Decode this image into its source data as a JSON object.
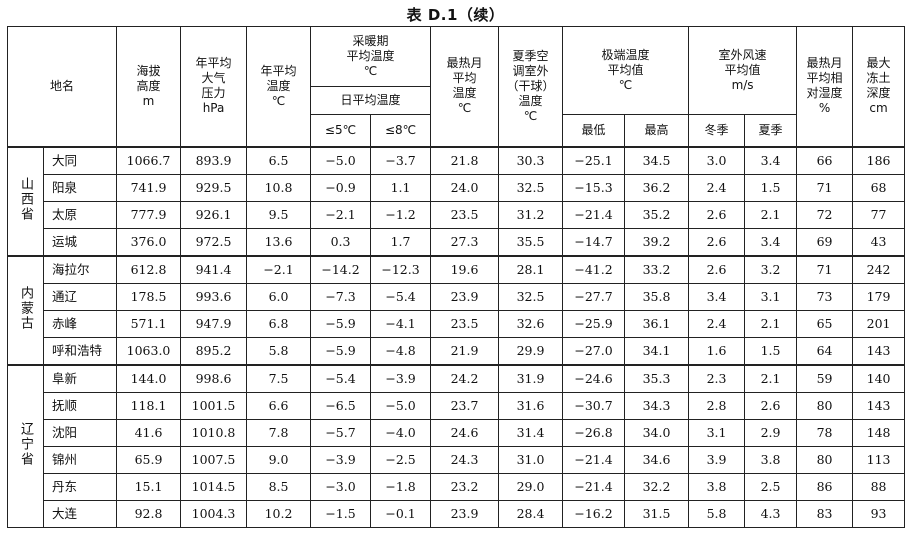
{
  "title": "表 D.1（续）",
  "header": {
    "place": "地名",
    "altitude": [
      "海拔",
      "高度",
      "m"
    ],
    "pressure": [
      "年平均",
      "大气",
      "压力",
      "hPa"
    ],
    "mean_temp": [
      "年平均",
      "温度",
      "℃"
    ],
    "heating_group": [
      "采暖期",
      "平均温度",
      "℃"
    ],
    "daily_mean": "日平均温度",
    "le5": "≤5℃",
    "le8": "≤8℃",
    "hottest_month": [
      "最热月",
      "平均",
      "温度",
      "℃"
    ],
    "summer_ac": [
      "夏季空",
      "调室外",
      "（干球）",
      "温度",
      "℃"
    ],
    "extreme_group": [
      "极端温度",
      "平均值",
      "℃"
    ],
    "min": "最低",
    "max": "最高",
    "wind_group": [
      "室外风速",
      "平均值",
      "m/s"
    ],
    "winter": "冬季",
    "summer": "夏季",
    "humidity": [
      "最热月",
      "平均相",
      "对湿度",
      "%"
    ],
    "frost": [
      "最大",
      "冻土",
      "深度",
      "cm"
    ]
  },
  "provinces": [
    {
      "name": "山西省",
      "rows": [
        {
          "city": "大同",
          "alt": "1066.7",
          "pres": "893.9",
          "temp": "6.5",
          "h5": "−5.0",
          "h8": "−3.7",
          "hot": "21.8",
          "ac": "30.3",
          "emin": "−25.1",
          "emax": "34.5",
          "ww": "3.0",
          "sw": "3.4",
          "rh": "66",
          "frost": "186"
        },
        {
          "city": "阳泉",
          "alt": "741.9",
          "pres": "929.5",
          "temp": "10.8",
          "h5": "−0.9",
          "h8": "1.1",
          "hot": "24.0",
          "ac": "32.5",
          "emin": "−15.3",
          "emax": "36.2",
          "ww": "2.4",
          "sw": "1.5",
          "rh": "71",
          "frost": "68"
        },
        {
          "city": "太原",
          "alt": "777.9",
          "pres": "926.1",
          "temp": "9.5",
          "h5": "−2.1",
          "h8": "−1.2",
          "hot": "23.5",
          "ac": "31.2",
          "emin": "−21.4",
          "emax": "35.2",
          "ww": "2.6",
          "sw": "2.1",
          "rh": "72",
          "frost": "77"
        },
        {
          "city": "运城",
          "alt": "376.0",
          "pres": "972.5",
          "temp": "13.6",
          "h5": "0.3",
          "h8": "1.7",
          "hot": "27.3",
          "ac": "35.5",
          "emin": "−14.7",
          "emax": "39.2",
          "ww": "2.6",
          "sw": "3.4",
          "rh": "69",
          "frost": "43"
        }
      ]
    },
    {
      "name": "内蒙古",
      "rows": [
        {
          "city": "海拉尔",
          "alt": "612.8",
          "pres": "941.4",
          "temp": "−2.1",
          "h5": "−14.2",
          "h8": "−12.3",
          "hot": "19.6",
          "ac": "28.1",
          "emin": "−41.2",
          "emax": "33.2",
          "ww": "2.6",
          "sw": "3.2",
          "rh": "71",
          "frost": "242"
        },
        {
          "city": "通辽",
          "alt": "178.5",
          "pres": "993.6",
          "temp": "6.0",
          "h5": "−7.3",
          "h8": "−5.4",
          "hot": "23.9",
          "ac": "32.5",
          "emin": "−27.7",
          "emax": "35.8",
          "ww": "3.4",
          "sw": "3.1",
          "rh": "73",
          "frost": "179"
        },
        {
          "city": "赤峰",
          "alt": "571.1",
          "pres": "947.9",
          "temp": "6.8",
          "h5": "−5.9",
          "h8": "−4.1",
          "hot": "23.5",
          "ac": "32.6",
          "emin": "−25.9",
          "emax": "36.1",
          "ww": "2.4",
          "sw": "2.1",
          "rh": "65",
          "frost": "201"
        },
        {
          "city": "呼和浩特",
          "alt": "1063.0",
          "pres": "895.2",
          "temp": "5.8",
          "h5": "−5.9",
          "h8": "−4.8",
          "hot": "21.9",
          "ac": "29.9",
          "emin": "−27.0",
          "emax": "34.1",
          "ww": "1.6",
          "sw": "1.5",
          "rh": "64",
          "frost": "143"
        }
      ]
    },
    {
      "name": "辽宁省",
      "rows": [
        {
          "city": "阜新",
          "alt": "144.0",
          "pres": "998.6",
          "temp": "7.5",
          "h5": "−5.4",
          "h8": "−3.9",
          "hot": "24.2",
          "ac": "31.9",
          "emin": "−24.6",
          "emax": "35.3",
          "ww": "2.3",
          "sw": "2.1",
          "rh": "59",
          "frost": "140"
        },
        {
          "city": "抚顺",
          "alt": "118.1",
          "pres": "1001.5",
          "temp": "6.6",
          "h5": "−6.5",
          "h8": "−5.0",
          "hot": "23.7",
          "ac": "31.6",
          "emin": "−30.7",
          "emax": "34.3",
          "ww": "2.8",
          "sw": "2.6",
          "rh": "80",
          "frost": "143"
        },
        {
          "city": "沈阳",
          "alt": "41.6",
          "pres": "1010.8",
          "temp": "7.8",
          "h5": "−5.7",
          "h8": "−4.0",
          "hot": "24.6",
          "ac": "31.4",
          "emin": "−26.8",
          "emax": "34.0",
          "ww": "3.1",
          "sw": "2.9",
          "rh": "78",
          "frost": "148"
        },
        {
          "city": "锦州",
          "alt": "65.9",
          "pres": "1007.5",
          "temp": "9.0",
          "h5": "−3.9",
          "h8": "−2.5",
          "hot": "24.3",
          "ac": "31.0",
          "emin": "−21.4",
          "emax": "34.6",
          "ww": "3.9",
          "sw": "3.8",
          "rh": "80",
          "frost": "113"
        },
        {
          "city": "丹东",
          "alt": "15.1",
          "pres": "1014.5",
          "temp": "8.5",
          "h5": "−3.0",
          "h8": "−1.8",
          "hot": "23.2",
          "ac": "29.0",
          "emin": "−21.4",
          "emax": "32.2",
          "ww": "3.8",
          "sw": "2.5",
          "rh": "86",
          "frost": "88"
        },
        {
          "city": "大连",
          "alt": "92.8",
          "pres": "1004.3",
          "temp": "10.2",
          "h5": "−1.5",
          "h8": "−0.1",
          "hot": "23.9",
          "ac": "28.4",
          "emin": "−16.2",
          "emax": "31.5",
          "ww": "5.8",
          "sw": "4.3",
          "rh": "83",
          "frost": "93"
        }
      ]
    }
  ]
}
